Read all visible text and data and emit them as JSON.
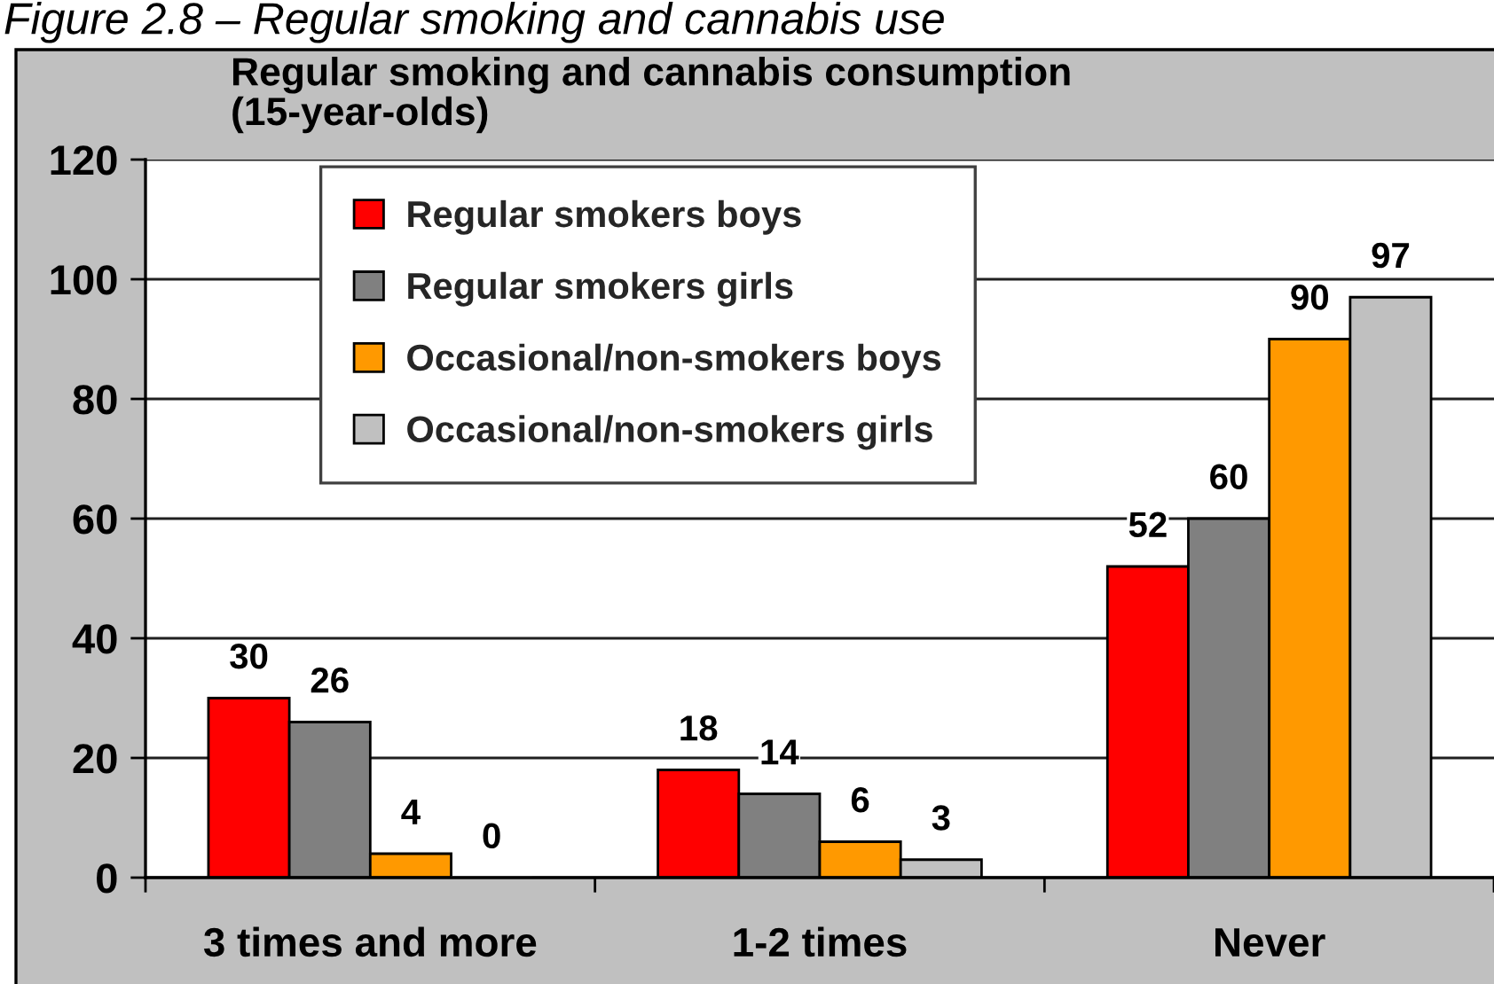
{
  "chart_data": {
    "type": "bar",
    "title": "Regular smoking and cannabis consumption\n(15-year-olds)",
    "annotations": [
      "Figure 2.8 – Regular smoking and cannabis use"
    ],
    "categories": [
      "3 times and more",
      "1-2 times",
      "Never"
    ],
    "series": [
      {
        "name": "Regular smokers boys",
        "color": "#ff0000",
        "values": [
          30,
          18,
          52
        ]
      },
      {
        "name": "Regular smokers girls",
        "color": "#808080",
        "values": [
          26,
          14,
          60
        ]
      },
      {
        "name": "Occasional/non-smokers boys",
        "color": "#ff9900",
        "values": [
          4,
          6,
          90
        ]
      },
      {
        "name": "Occasional/non-smokers girls",
        "color": "#c0c0c0",
        "values": [
          0,
          3,
          97
        ]
      }
    ],
    "ylim": [
      0,
      120
    ],
    "yticks": [
      0,
      20,
      40,
      60,
      80,
      100,
      120
    ],
    "grid": "y",
    "legend": "top left",
    "data_labels": true
  }
}
